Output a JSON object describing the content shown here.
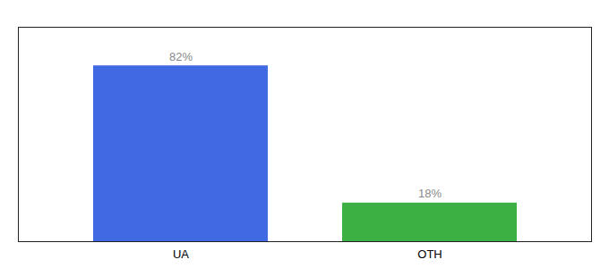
{
  "chart_data": {
    "type": "bar",
    "categories": [
      "UA",
      "OTH"
    ],
    "values": [
      82,
      18
    ],
    "value_labels": [
      "82%",
      "18%"
    ],
    "colors": [
      "#4169E1",
      "#3CB043"
    ],
    "ylim": [
      0,
      100
    ],
    "data_labels": true,
    "tick_labels": "x"
  }
}
